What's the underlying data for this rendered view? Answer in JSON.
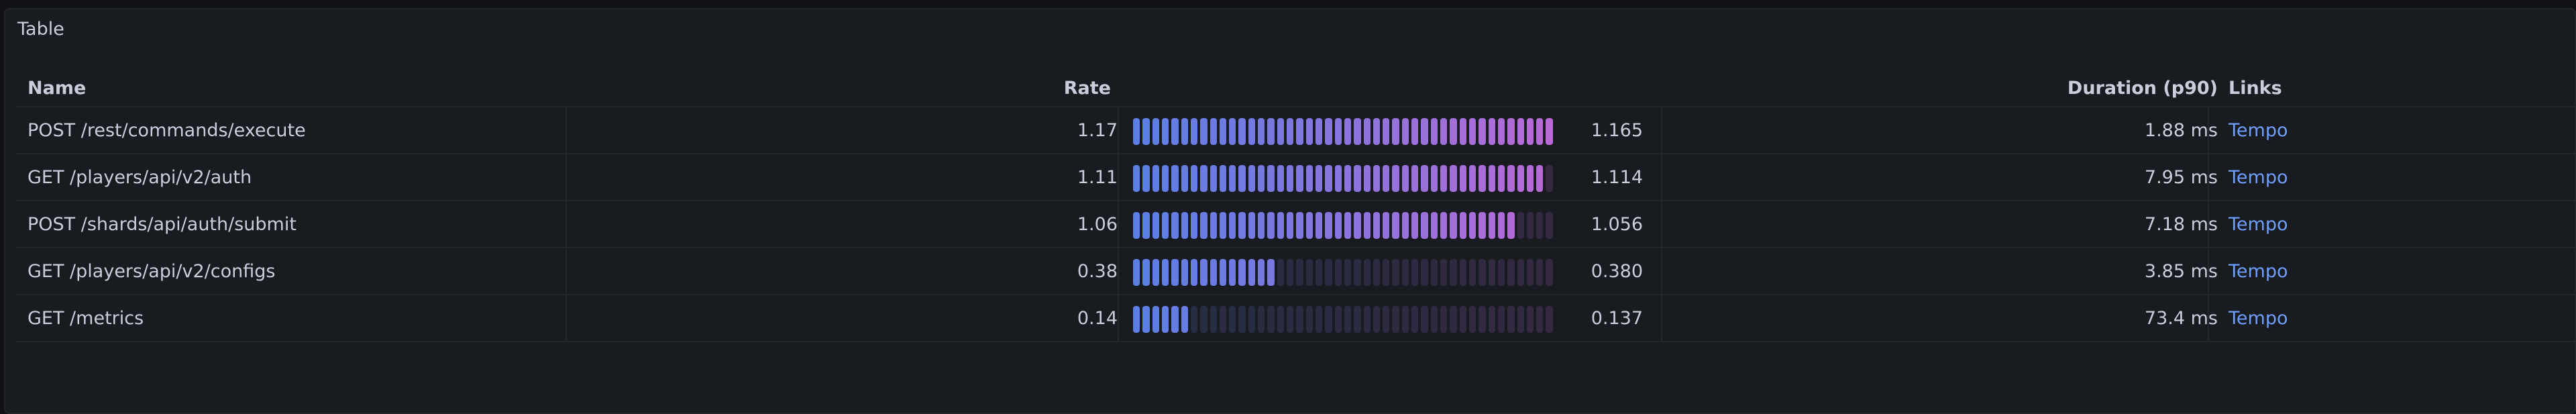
{
  "panel": {
    "title": "Table"
  },
  "columns": {
    "name": "Name",
    "rate": "Rate",
    "duration": "Duration (p90)",
    "links": "Links"
  },
  "rows": [
    {
      "name": "POST /rest/commands/execute",
      "rate": "1.17",
      "gauge_label": "1.165",
      "gauge_fraction": 1.0,
      "duration": "1.88 ms",
      "link": "Tempo"
    },
    {
      "name": "GET /players/api/v2/auth",
      "rate": "1.11",
      "gauge_label": "1.114",
      "gauge_fraction": 0.978,
      "duration": "7.95 ms",
      "link": "Tempo"
    },
    {
      "name": "POST /shards/api/auth/submit",
      "rate": "1.06",
      "gauge_label": "1.056",
      "gauge_fraction": 0.92,
      "duration": "7.18 ms",
      "link": "Tempo"
    },
    {
      "name": "GET /players/api/v2/configs",
      "rate": "0.38",
      "gauge_label": "0.380",
      "gauge_fraction": 0.35,
      "duration": "3.85 ms",
      "link": "Tempo"
    },
    {
      "name": "GET /metrics",
      "rate": "0.14",
      "gauge_label": "0.137",
      "gauge_fraction": 0.125,
      "duration": "73.4 ms",
      "link": "Tempo"
    }
  ],
  "colors": {
    "gauge_start": "#5b7fe5",
    "gauge_end": "#b86ad6",
    "link": "#6e9fff"
  }
}
